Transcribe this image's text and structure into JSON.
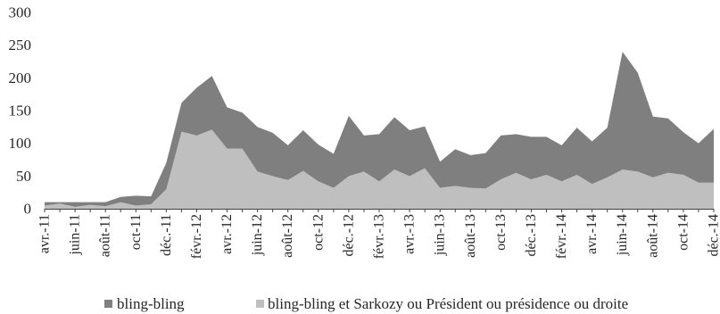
{
  "chart_data": {
    "type": "area",
    "categories": [
      "avr.-11",
      "",
      "juin-11",
      "",
      "août-11",
      "",
      "oct-11",
      "",
      "déc.-11",
      "",
      "févr.-12",
      "",
      "avr.-12",
      "",
      "juin-12",
      "",
      "août-12",
      "",
      "oct-12",
      "",
      "déc.-12",
      "",
      "févr.-13",
      "",
      "avr.-13",
      "",
      "juin-13",
      "",
      "août-13",
      "",
      "oct-13",
      "",
      "déc.-13",
      "",
      "févr.-14",
      "",
      "avr.-14",
      "",
      "juin-14",
      "",
      "août-14",
      "",
      "oct-14",
      "",
      "déc.-14"
    ],
    "yticks": [
      0,
      50,
      100,
      150,
      200,
      250,
      300
    ],
    "ylim": [
      0,
      300
    ],
    "grid": false,
    "legend_position": "bottom",
    "series": [
      {
        "name": "bling-bling",
        "color": "#7f7f7f",
        "values": [
          10,
          10,
          10,
          10,
          10,
          18,
          20,
          19,
          70,
          162,
          185,
          203,
          155,
          147,
          125,
          116,
          97,
          120,
          98,
          84,
          142,
          112,
          114,
          140,
          120,
          126,
          72,
          91,
          82,
          85,
          112,
          114,
          110,
          110,
          97,
          124,
          103,
          124,
          240,
          208,
          141,
          138,
          117,
          100,
          122
        ]
      },
      {
        "name": "bling-bling et Sarkozy ou Président ou présidence ou droite",
        "color": "#bfbfbf",
        "values": [
          5,
          8,
          3,
          6,
          4,
          10,
          5,
          7,
          30,
          118,
          112,
          121,
          92,
          92,
          57,
          50,
          44,
          58,
          42,
          32,
          50,
          57,
          42,
          60,
          50,
          62,
          32,
          35,
          32,
          31,
          45,
          55,
          45,
          52,
          42,
          52,
          38,
          48,
          60,
          57,
          48,
          55,
          52,
          40,
          40
        ]
      }
    ]
  }
}
